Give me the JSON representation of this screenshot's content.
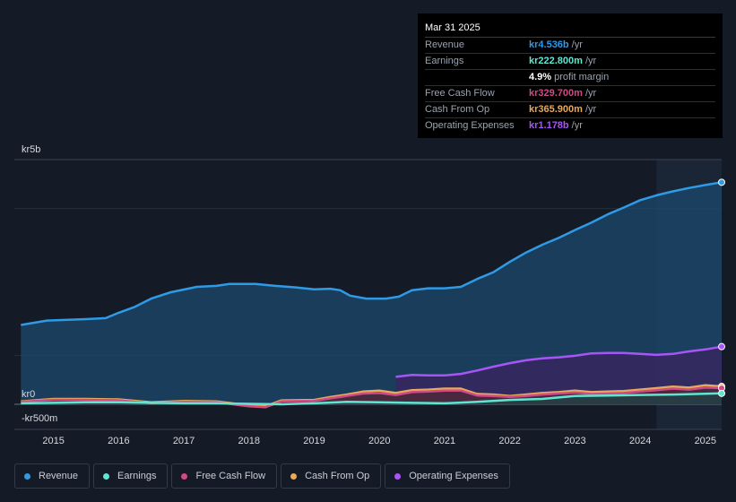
{
  "chart_data": {
    "type": "area",
    "currency_axis_labels": {
      "top": "kr5b",
      "zero": "kr0",
      "bottom": "-kr500m"
    },
    "ylim": [
      -500,
      5000
    ],
    "xlim": [
      2014.4,
      2025.25
    ],
    "x_ticks": [
      "2015",
      "2016",
      "2017",
      "2018",
      "2019",
      "2020",
      "2021",
      "2022",
      "2023",
      "2024",
      "2025"
    ],
    "forecast_from": 2024.25,
    "series": [
      {
        "name": "Revenue",
        "color": "#2f9ae6",
        "fill": "#1c4a6e",
        "points": [
          [
            2014.5,
            1620
          ],
          [
            2014.9,
            1710
          ],
          [
            2015.5,
            1740
          ],
          [
            2015.8,
            1760
          ],
          [
            2016.0,
            1870
          ],
          [
            2016.25,
            1990
          ],
          [
            2016.5,
            2160
          ],
          [
            2016.8,
            2290
          ],
          [
            2017.2,
            2400
          ],
          [
            2017.5,
            2420
          ],
          [
            2017.7,
            2460
          ],
          [
            2018.1,
            2460
          ],
          [
            2018.4,
            2420
          ],
          [
            2018.7,
            2390
          ],
          [
            2019.0,
            2350
          ],
          [
            2019.25,
            2360
          ],
          [
            2019.4,
            2330
          ],
          [
            2019.55,
            2220
          ],
          [
            2019.8,
            2160
          ],
          [
            2020.1,
            2160
          ],
          [
            2020.3,
            2200
          ],
          [
            2020.5,
            2330
          ],
          [
            2020.75,
            2370
          ],
          [
            2021.0,
            2370
          ],
          [
            2021.25,
            2400
          ],
          [
            2021.5,
            2560
          ],
          [
            2021.75,
            2700
          ],
          [
            2022.0,
            2910
          ],
          [
            2022.25,
            3100
          ],
          [
            2022.5,
            3260
          ],
          [
            2022.75,
            3400
          ],
          [
            2023.0,
            3560
          ],
          [
            2023.25,
            3710
          ],
          [
            2023.5,
            3880
          ],
          [
            2023.75,
            4020
          ],
          [
            2024.0,
            4170
          ],
          [
            2024.25,
            4270
          ],
          [
            2024.5,
            4350
          ],
          [
            2024.75,
            4420
          ],
          [
            2025.0,
            4480
          ],
          [
            2025.25,
            4536
          ]
        ]
      },
      {
        "name": "Operating Expenses",
        "color": "#a855f7",
        "fill": "#3b2460",
        "points": [
          [
            2020.25,
            560
          ],
          [
            2020.5,
            600
          ],
          [
            2020.75,
            590
          ],
          [
            2021.0,
            590
          ],
          [
            2021.25,
            620
          ],
          [
            2021.5,
            690
          ],
          [
            2021.75,
            770
          ],
          [
            2022.0,
            840
          ],
          [
            2022.25,
            900
          ],
          [
            2022.5,
            940
          ],
          [
            2022.75,
            960
          ],
          [
            2023.0,
            990
          ],
          [
            2023.25,
            1040
          ],
          [
            2023.5,
            1050
          ],
          [
            2023.75,
            1050
          ],
          [
            2024.0,
            1030
          ],
          [
            2024.25,
            1010
          ],
          [
            2024.5,
            1030
          ],
          [
            2024.75,
            1080
          ],
          [
            2025.0,
            1120
          ],
          [
            2025.25,
            1178
          ]
        ]
      },
      {
        "name": "Cash From Op",
        "color": "#e8a95c",
        "fill": "#4a3a30",
        "points": [
          [
            2014.5,
            60
          ],
          [
            2015.0,
            110
          ],
          [
            2015.5,
            110
          ],
          [
            2016.0,
            100
          ],
          [
            2016.5,
            40
          ],
          [
            2017.0,
            70
          ],
          [
            2017.5,
            60
          ],
          [
            2018.0,
            -20
          ],
          [
            2018.25,
            -40
          ],
          [
            2018.5,
            80
          ],
          [
            2019.0,
            90
          ],
          [
            2019.25,
            150
          ],
          [
            2019.5,
            200
          ],
          [
            2019.75,
            260
          ],
          [
            2020.0,
            280
          ],
          [
            2020.25,
            230
          ],
          [
            2020.5,
            290
          ],
          [
            2020.75,
            300
          ],
          [
            2021.0,
            320
          ],
          [
            2021.25,
            320
          ],
          [
            2021.5,
            210
          ],
          [
            2021.75,
            200
          ],
          [
            2022.0,
            170
          ],
          [
            2022.25,
            200
          ],
          [
            2022.5,
            230
          ],
          [
            2022.75,
            250
          ],
          [
            2023.0,
            280
          ],
          [
            2023.25,
            250
          ],
          [
            2023.5,
            260
          ],
          [
            2023.75,
            270
          ],
          [
            2024.0,
            300
          ],
          [
            2024.25,
            330
          ],
          [
            2024.5,
            360
          ],
          [
            2024.75,
            340
          ],
          [
            2025.0,
            390
          ],
          [
            2025.25,
            366
          ]
        ]
      },
      {
        "name": "Free Cash Flow",
        "color": "#d04a86",
        "fill": "#4a2540",
        "points": [
          [
            2014.5,
            50
          ],
          [
            2015.0,
            90
          ],
          [
            2015.5,
            90
          ],
          [
            2016.0,
            80
          ],
          [
            2016.5,
            20
          ],
          [
            2017.0,
            50
          ],
          [
            2017.5,
            40
          ],
          [
            2018.0,
            -40
          ],
          [
            2018.25,
            -60
          ],
          [
            2018.5,
            60
          ],
          [
            2019.0,
            70
          ],
          [
            2019.25,
            120
          ],
          [
            2019.5,
            170
          ],
          [
            2019.75,
            220
          ],
          [
            2020.0,
            230
          ],
          [
            2020.25,
            190
          ],
          [
            2020.5,
            250
          ],
          [
            2020.75,
            260
          ],
          [
            2021.0,
            280
          ],
          [
            2021.25,
            280
          ],
          [
            2021.5,
            180
          ],
          [
            2021.75,
            170
          ],
          [
            2022.0,
            150
          ],
          [
            2022.25,
            170
          ],
          [
            2022.5,
            200
          ],
          [
            2022.75,
            220
          ],
          [
            2023.0,
            240
          ],
          [
            2023.25,
            210
          ],
          [
            2023.5,
            220
          ],
          [
            2023.75,
            230
          ],
          [
            2024.0,
            260
          ],
          [
            2024.25,
            290
          ],
          [
            2024.5,
            320
          ],
          [
            2024.75,
            300
          ],
          [
            2025.0,
            340
          ],
          [
            2025.25,
            330
          ]
        ]
      },
      {
        "name": "Earnings",
        "color": "#5ee6d0",
        "fill": "#1f4346",
        "points": [
          [
            2014.5,
            20
          ],
          [
            2015.0,
            30
          ],
          [
            2015.5,
            40
          ],
          [
            2016.0,
            40
          ],
          [
            2016.5,
            30
          ],
          [
            2017.0,
            20
          ],
          [
            2017.5,
            20
          ],
          [
            2018.0,
            10
          ],
          [
            2018.5,
            0
          ],
          [
            2019.0,
            20
          ],
          [
            2019.5,
            50
          ],
          [
            2020.0,
            40
          ],
          [
            2020.5,
            30
          ],
          [
            2021.0,
            20
          ],
          [
            2021.5,
            50
          ],
          [
            2022.0,
            90
          ],
          [
            2022.5,
            110
          ],
          [
            2023.0,
            170
          ],
          [
            2023.5,
            180
          ],
          [
            2024.0,
            190
          ],
          [
            2024.5,
            200
          ],
          [
            2025.0,
            215
          ],
          [
            2025.25,
            223
          ]
        ]
      }
    ]
  },
  "tooltip": {
    "date": "Mar 31 2025",
    "rows": [
      {
        "label": "Revenue",
        "value": "kr4.536b",
        "unit": "/yr",
        "color": "#2f9ae6"
      },
      {
        "label": "Earnings",
        "value": "kr222.800m",
        "unit": "/yr",
        "color": "#5ee6d0"
      },
      {
        "label": "",
        "value": "4.9%",
        "unit": "profit margin",
        "color": "#ffffff"
      },
      {
        "label": "Free Cash Flow",
        "value": "kr329.700m",
        "unit": "/yr",
        "color": "#d04a86"
      },
      {
        "label": "Cash From Op",
        "value": "kr365.900m",
        "unit": "/yr",
        "color": "#e8a95c"
      },
      {
        "label": "Operating Expenses",
        "value": "kr1.178b",
        "unit": "/yr",
        "color": "#a855f7"
      }
    ]
  },
  "legend": [
    {
      "label": "Revenue",
      "color": "#2f9ae6"
    },
    {
      "label": "Earnings",
      "color": "#5ee6d0"
    },
    {
      "label": "Free Cash Flow",
      "color": "#d04a86"
    },
    {
      "label": "Cash From Op",
      "color": "#e8a95c"
    },
    {
      "label": "Operating Expenses",
      "color": "#a855f7"
    }
  ]
}
